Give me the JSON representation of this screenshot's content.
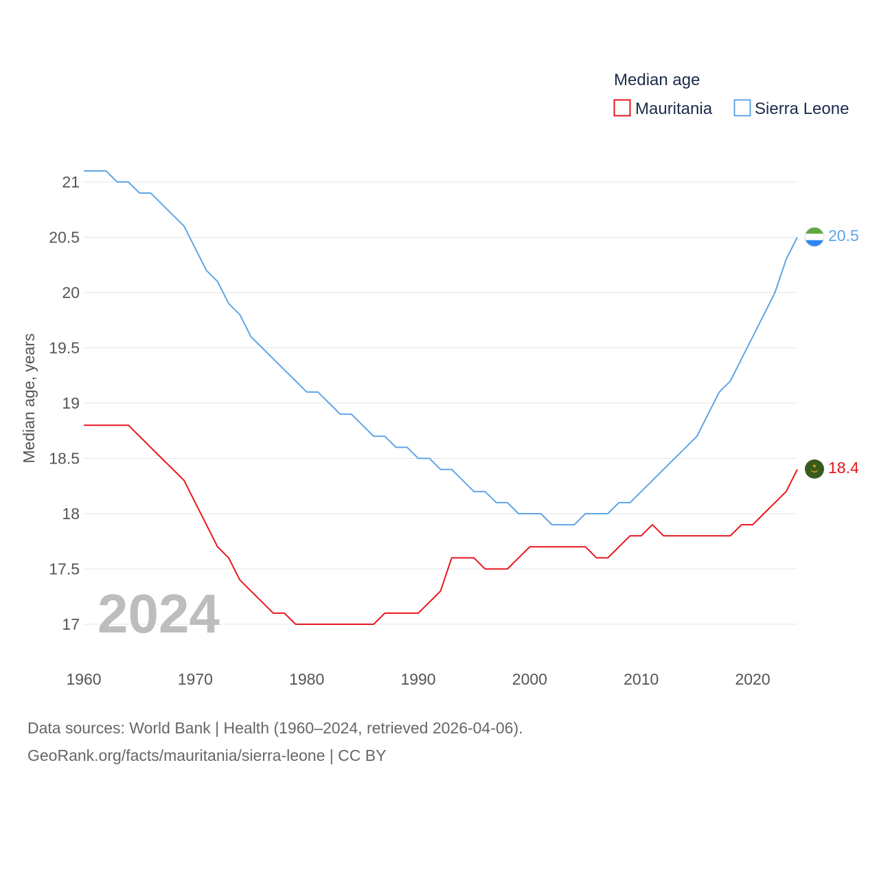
{
  "chart_data": {
    "type": "line",
    "legend_title": "Median age",
    "ylabel": "Median age, years",
    "xlabel": "",
    "ylim": [
      16.7,
      21.2
    ],
    "xlim": [
      1960,
      2024
    ],
    "yticks": [
      17,
      17.5,
      18,
      18.5,
      19,
      19.5,
      20,
      20.5,
      21
    ],
    "ytick_labels": [
      "17",
      "17.5",
      "18",
      "18.5",
      "19",
      "19.5",
      "20",
      "20.5",
      "21"
    ],
    "xticks": [
      1960,
      1970,
      1980,
      1990,
      2000,
      2010,
      2020
    ],
    "xtick_labels": [
      "1960",
      "1970",
      "1980",
      "1990",
      "2000",
      "2010",
      "2020"
    ],
    "year_overlay": "2024",
    "legend_position": "top-right",
    "series": [
      {
        "name": "Mauritania",
        "color": "#e8141c",
        "end_label": "18.4",
        "flag": "mauritania-flag",
        "x": [
          1960,
          1961,
          1962,
          1963,
          1964,
          1965,
          1966,
          1967,
          1968,
          1969,
          1970,
          1971,
          1972,
          1973,
          1974,
          1975,
          1976,
          1977,
          1978,
          1979,
          1980,
          1981,
          1982,
          1983,
          1984,
          1985,
          1986,
          1987,
          1988,
          1989,
          1990,
          1991,
          1992,
          1993,
          1994,
          1995,
          1996,
          1997,
          1998,
          1999,
          2000,
          2001,
          2002,
          2003,
          2004,
          2005,
          2006,
          2007,
          2008,
          2009,
          2010,
          2011,
          2012,
          2013,
          2014,
          2015,
          2016,
          2017,
          2018,
          2019,
          2020,
          2021,
          2022,
          2023,
          2024
        ],
        "values": [
          18.8,
          18.8,
          18.8,
          18.8,
          18.8,
          18.7,
          18.6,
          18.5,
          18.4,
          18.3,
          18.1,
          17.9,
          17.7,
          17.6,
          17.4,
          17.3,
          17.2,
          17.1,
          17.1,
          17.0,
          17.0,
          17.0,
          17.0,
          17.0,
          17.0,
          17.0,
          17.0,
          17.1,
          17.1,
          17.1,
          17.1,
          17.2,
          17.3,
          17.6,
          17.6,
          17.6,
          17.5,
          17.5,
          17.5,
          17.6,
          17.7,
          17.7,
          17.7,
          17.7,
          17.7,
          17.7,
          17.6,
          17.6,
          17.7,
          17.8,
          17.8,
          17.9,
          17.8,
          17.8,
          17.8,
          17.8,
          17.8,
          17.8,
          17.8,
          17.9,
          17.9,
          18.0,
          18.1,
          18.2,
          18.4
        ]
      },
      {
        "name": "Sierra Leone",
        "color": "#5ea4e6",
        "end_label": "20.5",
        "flag": "sierra-leone-flag",
        "x": [
          1960,
          1961,
          1962,
          1963,
          1964,
          1965,
          1966,
          1967,
          1968,
          1969,
          1970,
          1971,
          1972,
          1973,
          1974,
          1975,
          1976,
          1977,
          1978,
          1979,
          1980,
          1981,
          1982,
          1983,
          1984,
          1985,
          1986,
          1987,
          1988,
          1989,
          1990,
          1991,
          1992,
          1993,
          1994,
          1995,
          1996,
          1997,
          1998,
          1999,
          2000,
          2001,
          2002,
          2003,
          2004,
          2005,
          2006,
          2007,
          2008,
          2009,
          2010,
          2011,
          2012,
          2013,
          2014,
          2015,
          2016,
          2017,
          2018,
          2019,
          2020,
          2021,
          2022,
          2023,
          2024
        ],
        "values": [
          21.1,
          21.1,
          21.1,
          21.0,
          21.0,
          20.9,
          20.9,
          20.8,
          20.7,
          20.6,
          20.4,
          20.2,
          20.1,
          19.9,
          19.8,
          19.6,
          19.5,
          19.4,
          19.3,
          19.2,
          19.1,
          19.1,
          19.0,
          18.9,
          18.9,
          18.8,
          18.7,
          18.7,
          18.6,
          18.6,
          18.5,
          18.5,
          18.4,
          18.4,
          18.3,
          18.2,
          18.2,
          18.1,
          18.1,
          18.0,
          18.0,
          18.0,
          17.9,
          17.9,
          17.9,
          18.0,
          18.0,
          18.0,
          18.1,
          18.1,
          18.2,
          18.3,
          18.4,
          18.5,
          18.6,
          18.7,
          18.9,
          19.1,
          19.2,
          19.4,
          19.6,
          19.8,
          20.0,
          20.3,
          20.5
        ]
      }
    ]
  },
  "footer": {
    "sources": "Data sources: World Bank | Health (1960–2024, retrieved 2026-04-06).",
    "attribution": "GeoRank.org/facts/mauritania/sierra-leone | CC BY"
  }
}
